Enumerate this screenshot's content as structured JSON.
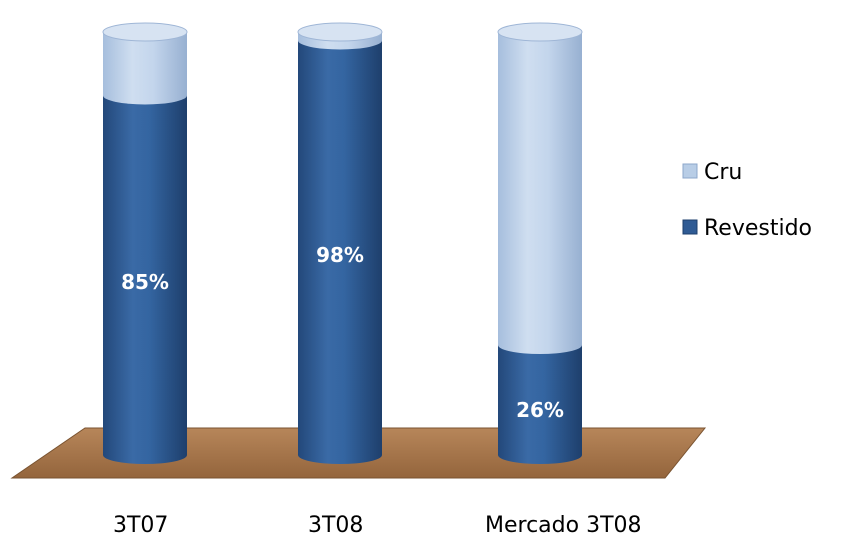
{
  "chart_data": {
    "type": "bar",
    "stacked": true,
    "percent_stacked": true,
    "shape": "cylinder-3d",
    "categories": [
      "3T07",
      "3T08",
      "Mercado 3T08"
    ],
    "series": [
      {
        "name": "Revestido",
        "values": [
          85,
          98,
          26
        ],
        "data_labels": [
          "85%",
          "98%",
          "26%"
        ]
      },
      {
        "name": "Cru",
        "values": [
          15,
          2,
          74
        ]
      }
    ],
    "ylim": [
      0,
      100
    ],
    "legend_position": "right",
    "legend_order": [
      "Cru",
      "Revestido"
    ]
  },
  "colors": {
    "revestido": "#2f5b94",
    "cru": "#b8cde6",
    "floor": "#a8774a"
  }
}
